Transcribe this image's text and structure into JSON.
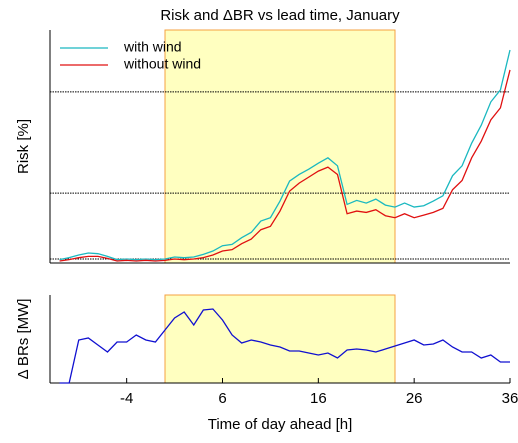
{
  "chart_data": [
    {
      "type": "line",
      "title": "Risk and ΔBR vs lead time, January",
      "ylabel": "Risk [%]",
      "x": [
        -11,
        -10,
        -9,
        -8,
        -7,
        -6,
        -5,
        -4,
        -3,
        -2,
        -1,
        0,
        1,
        2,
        3,
        4,
        5,
        6,
        7,
        8,
        9,
        10,
        11,
        12,
        13,
        14,
        15,
        16,
        17,
        18,
        19,
        20,
        21,
        22,
        23,
        24,
        25,
        26,
        27,
        28,
        29,
        30,
        31,
        32,
        33,
        34,
        35,
        36
      ],
      "xlim": [
        -12,
        36
      ],
      "ylim": [
        0,
        35
      ],
      "span": [
        0,
        24
      ],
      "span_color": "#ffffc0",
      "span_edge": "#f5a040",
      "hlines": [
        25.7,
        10.5,
        0.6
      ],
      "legend": "upper left",
      "series": [
        {
          "name": "with wind",
          "color": "#1ab8c0",
          "values": [
            0.5,
            0.8,
            1.2,
            1.5,
            1.4,
            1.0,
            0.5,
            0.6,
            0.5,
            0.6,
            0.5,
            0.6,
            0.9,
            0.8,
            0.9,
            1.3,
            1.8,
            2.6,
            2.8,
            3.8,
            4.6,
            6.3,
            6.8,
            9.3,
            12.3,
            13.3,
            14.1,
            15.0,
            15.8,
            14.6,
            8.8,
            9.4,
            9.0,
            9.6,
            8.7,
            8.4,
            9.0,
            8.4,
            8.6,
            9.3,
            10.1,
            13.1,
            14.6,
            18.0,
            20.7,
            24.2,
            26.0,
            32.0
          ]
        },
        {
          "name": "without wind",
          "color": "#e01010",
          "values": [
            0.3,
            0.5,
            0.8,
            1.0,
            1.0,
            0.7,
            0.3,
            0.4,
            0.3,
            0.4,
            0.3,
            0.4,
            0.6,
            0.5,
            0.6,
            0.8,
            1.2,
            1.8,
            2.0,
            2.9,
            3.6,
            5.0,
            5.5,
            7.8,
            10.8,
            12.0,
            12.9,
            13.8,
            14.4,
            13.3,
            7.4,
            7.8,
            7.6,
            8.0,
            7.1,
            6.8,
            7.4,
            6.8,
            7.2,
            7.6,
            8.2,
            11.0,
            12.4,
            15.8,
            18.3,
            21.5,
            23.3,
            29.0
          ]
        }
      ]
    },
    {
      "type": "line",
      "ylabel": "Δ BRs [MW]",
      "xlabel": "Time of day ahead [h]",
      "x": [
        -11,
        -10,
        -9,
        -8,
        -7,
        -6,
        -5,
        -4,
        -3,
        -2,
        -1,
        0,
        1,
        2,
        3,
        4,
        5,
        6,
        7,
        8,
        9,
        10,
        11,
        12,
        13,
        14,
        15,
        16,
        17,
        18,
        19,
        20,
        21,
        22,
        23,
        24,
        25,
        26,
        27,
        28,
        29,
        30,
        31,
        32,
        33,
        34,
        35,
        36
      ],
      "xlim": [
        -12,
        36
      ],
      "xticks": [
        -4,
        6,
        16,
        26,
        36
      ],
      "ylim": [
        0,
        88
      ],
      "span": [
        0,
        24
      ],
      "span_color": "#ffffc0",
      "span_edge": "#f5a040",
      "series": [
        {
          "color": "#1010d0",
          "values": [
            0,
            0,
            43,
            45,
            38,
            31,
            41,
            41,
            48,
            43,
            41,
            53,
            65,
            71,
            58,
            73,
            74,
            63,
            48,
            40,
            43,
            41,
            38,
            36,
            32,
            32,
            30,
            28,
            30,
            25,
            33,
            34,
            33,
            31,
            34,
            37,
            40,
            43,
            38,
            39,
            43,
            36,
            31,
            31,
            25,
            28,
            21,
            21
          ]
        }
      ]
    }
  ]
}
